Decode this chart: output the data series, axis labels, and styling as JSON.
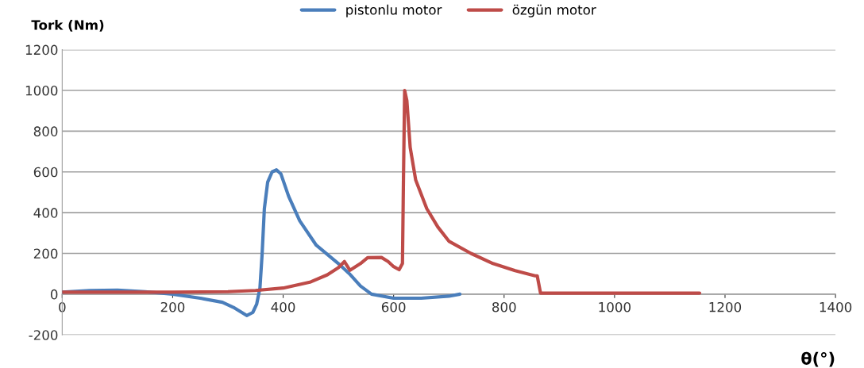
{
  "chart_data": {
    "type": "line",
    "ylabel": "Tork (Nm)",
    "xlabel": "θ(°)",
    "xlim": [
      0,
      1400
    ],
    "xticks": [
      0,
      200,
      400,
      600,
      800,
      1000,
      1200,
      1400
    ],
    "ylim": [
      -200,
      1200
    ],
    "yticks": [
      -200,
      0,
      200,
      400,
      600,
      800,
      1000,
      1200
    ],
    "grid": "y",
    "legend": "top",
    "marker": "none",
    "line_style": "solid",
    "series": [
      {
        "name": "pistonlu motor",
        "color": "#4a7ebb",
        "x": [
          0,
          50,
          100,
          150,
          200,
          250,
          290,
          310,
          334,
          345,
          352,
          358,
          362,
          366,
          372,
          380,
          388,
          396,
          410,
          430,
          460,
          500,
          520,
          540,
          560,
          600,
          650,
          700,
          720
        ],
        "values": [
          10,
          18,
          20,
          12,
          0,
          -20,
          -40,
          -65,
          -105,
          -90,
          -50,
          30,
          200,
          420,
          550,
          600,
          610,
          590,
          480,
          360,
          240,
          150,
          100,
          40,
          0,
          -20,
          -20,
          -10,
          0
        ]
      },
      {
        "name": "özgün motor",
        "color": "#be4b48",
        "x": [
          0,
          100,
          200,
          300,
          350,
          400,
          450,
          480,
          500,
          511,
          521,
          540,
          553,
          578,
          590,
          600,
          610,
          616,
          618,
          620,
          624,
          630,
          640,
          660,
          680,
          700,
          740,
          780,
          820,
          856,
          860,
          866,
          900,
          1000,
          1100,
          1154
        ],
        "values": [
          10,
          10,
          10,
          12,
          18,
          30,
          60,
          95,
          130,
          160,
          117,
          150,
          179,
          180,
          160,
          135,
          120,
          150,
          600,
          1000,
          950,
          720,
          560,
          420,
          330,
          260,
          200,
          150,
          115,
          90,
          90,
          5,
          5,
          5,
          5,
          5
        ]
      }
    ]
  }
}
